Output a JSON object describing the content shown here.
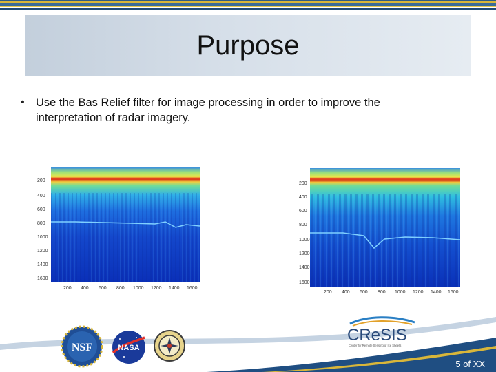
{
  "slide": {
    "title": "Purpose",
    "bullet_symbol": "•",
    "bullet_text": "Use the Bas Relief filter for image processing in order to improve the interpretation of radar imagery.",
    "page_number": "5 of XX"
  },
  "images": {
    "left": {
      "y_ticks": [
        "200",
        "400",
        "600",
        "800",
        "1000",
        "1200",
        "1400",
        "1600"
      ],
      "x_ticks": [
        "200",
        "400",
        "600",
        "800",
        "1000",
        "1200",
        "1400",
        "1600"
      ]
    },
    "right": {
      "y_ticks": [
        "200",
        "400",
        "600",
        "800",
        "1000",
        "1200",
        "1400",
        "1600"
      ],
      "x_ticks": [
        "200",
        "400",
        "600",
        "800",
        "1000",
        "1200",
        "1400",
        "1600"
      ]
    }
  },
  "logos": {
    "nsf": "NSF",
    "nasa": "NASA",
    "cresis_name": "CReSIS",
    "cresis_tagline": "Center for Remote Sensing of Ice Sheets"
  },
  "colors": {
    "stripe_blue": "#2f5a86",
    "stripe_gold": "#d8b63a",
    "footer_blue": "#1f4e82"
  }
}
